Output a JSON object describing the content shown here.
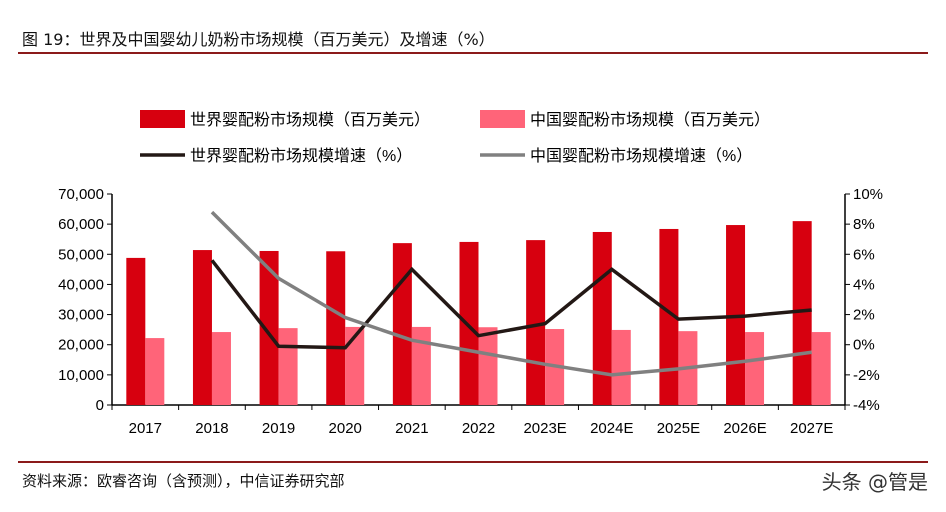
{
  "title": "图 19：世界及中国婴幼儿奶粉市场规模（百万美元）及增速（%）",
  "source": "资料来源：欧睿咨询（含预测），中信证券研究部",
  "watermark": "头条 @管是",
  "chart_data": {
    "type": "bar",
    "categories": [
      "2017",
      "2018",
      "2019",
      "2020",
      "2021",
      "2022",
      "2023E",
      "2024E",
      "2025E",
      "2026E",
      "2027E"
    ],
    "series": [
      {
        "name": "世界婴配粉市场规模（百万美元）",
        "type": "bar",
        "axis": "left",
        "color": "#d7000f",
        "values": [
          48800,
          51400,
          51100,
          51000,
          53700,
          54100,
          54700,
          57400,
          58400,
          59700,
          61000
        ]
      },
      {
        "name": "中国婴配粉市场规模（百万美元）",
        "type": "bar",
        "axis": "left",
        "color": "#ff6479",
        "values": [
          22200,
          24200,
          25500,
          25900,
          25900,
          25800,
          25200,
          24900,
          24500,
          24200,
          24200
        ]
      },
      {
        "name": "世界婴配粉市场规模增速（%）",
        "type": "line",
        "axis": "right",
        "color": "#231815",
        "values": [
          null,
          5.6,
          -0.1,
          -0.2,
          5.0,
          0.6,
          1.4,
          5.0,
          1.7,
          1.9,
          2.3
        ]
      },
      {
        "name": "中国婴配粉市场规模增速（%）",
        "type": "line",
        "axis": "right",
        "color": "#808080",
        "values": [
          null,
          8.8,
          4.4,
          1.8,
          0.3,
          -0.5,
          -1.3,
          -2.0,
          -1.6,
          -1.1,
          -0.5
        ]
      }
    ],
    "y_left": {
      "range": [
        0,
        70000
      ],
      "ticks": [
        "0",
        "10,000",
        "20,000",
        "30,000",
        "40,000",
        "50,000",
        "60,000",
        "70,000"
      ]
    },
    "y_right": {
      "range": [
        -4,
        10
      ],
      "ticks": [
        "-4%",
        "-2%",
        "0%",
        "2%",
        "4%",
        "6%",
        "8%",
        "10%"
      ]
    },
    "grid": false,
    "legend_position": "top"
  }
}
